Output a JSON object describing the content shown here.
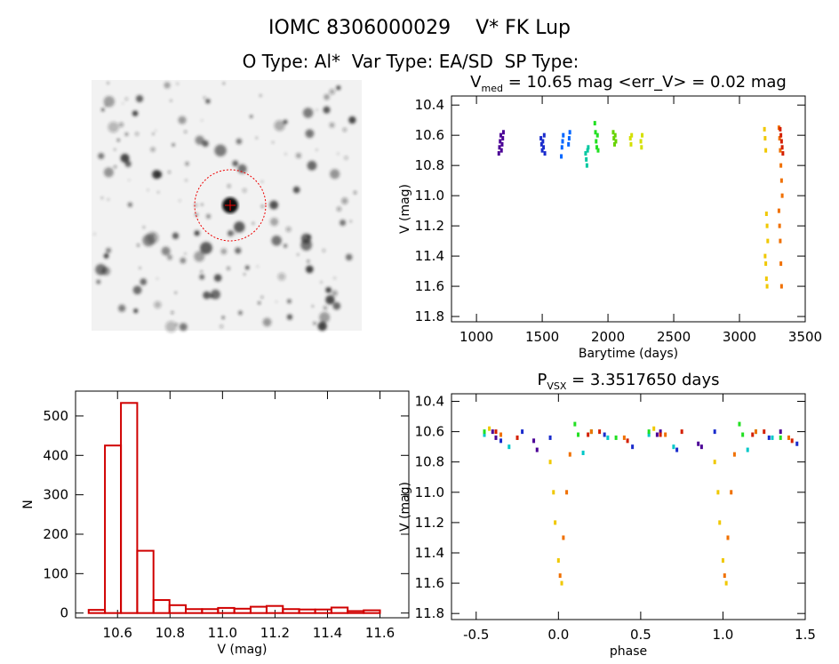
{
  "header": {
    "title": "IOMC 8306000029    V* FK Lup",
    "subtitle": "O Type: Al*  Var Type: EA/SD  SP Type:"
  },
  "chart_data": [
    {
      "type": "scatter",
      "title": [
        "V",
        "med",
        " = 10.65 mag <err_V> = 0.02 mag"
      ],
      "xlabel": "Barytime (days)",
      "ylabel": "V (mag)",
      "xlim": [
        810,
        3500
      ],
      "xticks": [
        1000,
        1500,
        2000,
        2500,
        3000,
        3500
      ],
      "ylim": [
        11.835,
        10.34
      ],
      "yticks": [
        10.4,
        10.6,
        10.8,
        {
          "value": 11.0,
          "label": "11.0"
        },
        11.2,
        11.4,
        11.6,
        11.8
      ],
      "series": [
        {
          "color": "#4b0096",
          "x": [
            1170,
            1175,
            1180,
            1185,
            1190,
            1195,
            1200,
            1205
          ],
          "values": [
            10.72,
            10.68,
            10.64,
            10.6,
            10.7,
            10.66,
            10.62,
            10.58
          ]
        },
        {
          "color": "#1a2ccc",
          "x": [
            1490,
            1495,
            1500,
            1505,
            1510,
            1515,
            1520
          ],
          "values": [
            10.62,
            10.66,
            10.7,
            10.64,
            10.68,
            10.6,
            10.72
          ]
        },
        {
          "color": "#0066ff",
          "x": [
            1645,
            1650,
            1655,
            1660,
            1700,
            1705,
            1710
          ],
          "values": [
            10.74,
            10.68,
            10.64,
            10.6,
            10.66,
            10.62,
            10.58
          ]
        },
        {
          "color": "#00c8a0",
          "x": [
            1830,
            1835,
            1840,
            1845,
            1850
          ],
          "values": [
            10.72,
            10.76,
            10.8,
            10.7,
            10.68
          ]
        },
        {
          "color": "#22e022",
          "x": [
            1900,
            1905,
            1910,
            1915,
            1920,
            1925
          ],
          "values": [
            10.52,
            10.58,
            10.64,
            10.68,
            10.6,
            10.7
          ]
        },
        {
          "color": "#66d400",
          "x": [
            2040,
            2045,
            2050,
            2055,
            2060
          ],
          "values": [
            10.58,
            10.62,
            10.66,
            10.6,
            10.64
          ]
        },
        {
          "color": "#d4e000",
          "x": [
            2170,
            2175,
            2180,
            2250,
            2255,
            2260
          ],
          "values": [
            10.62,
            10.66,
            10.6,
            10.64,
            10.68,
            10.6
          ]
        },
        {
          "color": "#f0c800",
          "x": [
            3190,
            3195,
            3200,
            3205,
            3210,
            3215,
            3195,
            3200,
            3205,
            3210
          ],
          "values": [
            10.56,
            10.62,
            10.7,
            11.12,
            11.2,
            11.3,
            11.4,
            11.45,
            11.55,
            11.6
          ]
        },
        {
          "color": "#f07000",
          "x": [
            3300,
            3305,
            3310,
            3315,
            3320,
            3325,
            3300,
            3305,
            3310,
            3315,
            3320
          ],
          "values": [
            10.55,
            10.62,
            10.7,
            10.8,
            10.9,
            11.0,
            11.1,
            11.2,
            11.3,
            11.45,
            11.6
          ]
        },
        {
          "color": "#d42000",
          "x": [
            3310,
            3315,
            3320,
            3325,
            3330
          ],
          "values": [
            10.56,
            10.6,
            10.64,
            10.68,
            10.72
          ]
        }
      ]
    },
    {
      "type": "histogram",
      "xlabel": "V (mag)",
      "ylabel": "N",
      "color": "#d00000",
      "xlim": [
        10.44,
        11.71
      ],
      "xticks": [
        10.6,
        10.8,
        {
          "value": 11.0,
          "label": "11.0"
        },
        11.2,
        11.4,
        11.6
      ],
      "ylim": [
        -12,
        563
      ],
      "yticks": [
        0,
        100,
        200,
        300,
        400,
        500
      ],
      "bins": [
        10.49,
        10.552,
        10.613,
        10.675,
        10.737,
        10.798,
        10.86,
        10.922,
        10.983,
        11.045,
        11.107,
        11.168,
        11.23,
        11.292,
        11.353,
        11.415,
        11.477,
        11.538,
        11.6
      ],
      "values": [
        8,
        425,
        533,
        158,
        33,
        20,
        10,
        10,
        13,
        11,
        16,
        18,
        10,
        9,
        9,
        14,
        5,
        7
      ]
    },
    {
      "type": "scatter",
      "title": [
        "P",
        "VSX",
        " = 3.3517650 days"
      ],
      "xlabel": "phase",
      "ylabel": "V (mag)",
      "xlim": [
        -0.65,
        1.5
      ],
      "xticks": [
        -0.5,
        {
          "value": 0.0,
          "label": "0.0"
        },
        0.5,
        {
          "value": 1.0,
          "label": "1.0"
        },
        1.5
      ],
      "ylim": [
        11.84,
        10.35
      ],
      "yticks": [
        10.4,
        10.6,
        10.8,
        {
          "value": 11.0,
          "label": "11.0"
        },
        11.2,
        11.4,
        11.6,
        11.8
      ],
      "series": [
        {
          "color": "#4b0096",
          "x": [
            -0.4,
            -0.38,
            -0.15,
            -0.13,
            0.6,
            0.62,
            0.85,
            0.87,
            1.35
          ],
          "values": [
            10.6,
            10.64,
            10.66,
            10.72,
            10.62,
            10.6,
            10.68,
            10.7,
            10.6
          ]
        },
        {
          "color": "#1a2ccc",
          "x": [
            -0.35,
            -0.22,
            -0.05,
            0.28,
            0.45,
            0.72,
            0.95,
            1.28,
            1.45
          ],
          "values": [
            10.66,
            10.6,
            10.64,
            10.62,
            10.7,
            10.72,
            10.6,
            10.64,
            10.68
          ]
        },
        {
          "color": "#00c8c8",
          "x": [
            -0.45,
            -0.3,
            0.15,
            0.3,
            0.55,
            0.7,
            1.15,
            1.3
          ],
          "values": [
            10.62,
            10.7,
            10.74,
            10.64,
            10.62,
            10.7,
            10.72,
            10.64
          ]
        },
        {
          "color": "#22e022",
          "x": [
            -0.45,
            0.1,
            0.12,
            0.2,
            0.35,
            0.55,
            1.1,
            1.12,
            1.2,
            1.35
          ],
          "values": [
            10.6,
            10.55,
            10.62,
            10.6,
            10.64,
            10.6,
            10.55,
            10.62,
            10.6,
            10.64
          ]
        },
        {
          "color": "#f0c800",
          "x": [
            -0.05,
            -0.03,
            -0.02,
            0.0,
            0.02,
            0.95,
            0.97,
            0.98,
            1.0,
            1.02,
            -0.42,
            0.58
          ],
          "values": [
            10.8,
            11.0,
            11.2,
            11.45,
            11.6,
            10.8,
            11.0,
            11.2,
            11.45,
            11.6,
            10.58,
            10.58
          ]
        },
        {
          "color": "#f07000",
          "x": [
            0.01,
            0.03,
            0.05,
            0.07,
            1.01,
            1.03,
            1.05,
            1.07,
            -0.35,
            0.2,
            0.4,
            0.65,
            1.2,
            1.4
          ],
          "values": [
            11.55,
            11.3,
            11.0,
            10.75,
            11.55,
            11.3,
            11.0,
            10.75,
            10.62,
            10.6,
            10.64,
            10.62,
            10.6,
            10.64
          ]
        },
        {
          "color": "#d42000",
          "x": [
            -0.38,
            -0.25,
            0.18,
            0.25,
            0.42,
            0.62,
            0.75,
            1.18,
            1.25,
            1.42
          ],
          "values": [
            10.6,
            10.64,
            10.62,
            10.6,
            10.66,
            10.62,
            10.6,
            10.62,
            10.6,
            10.66
          ]
        }
      ]
    }
  ]
}
